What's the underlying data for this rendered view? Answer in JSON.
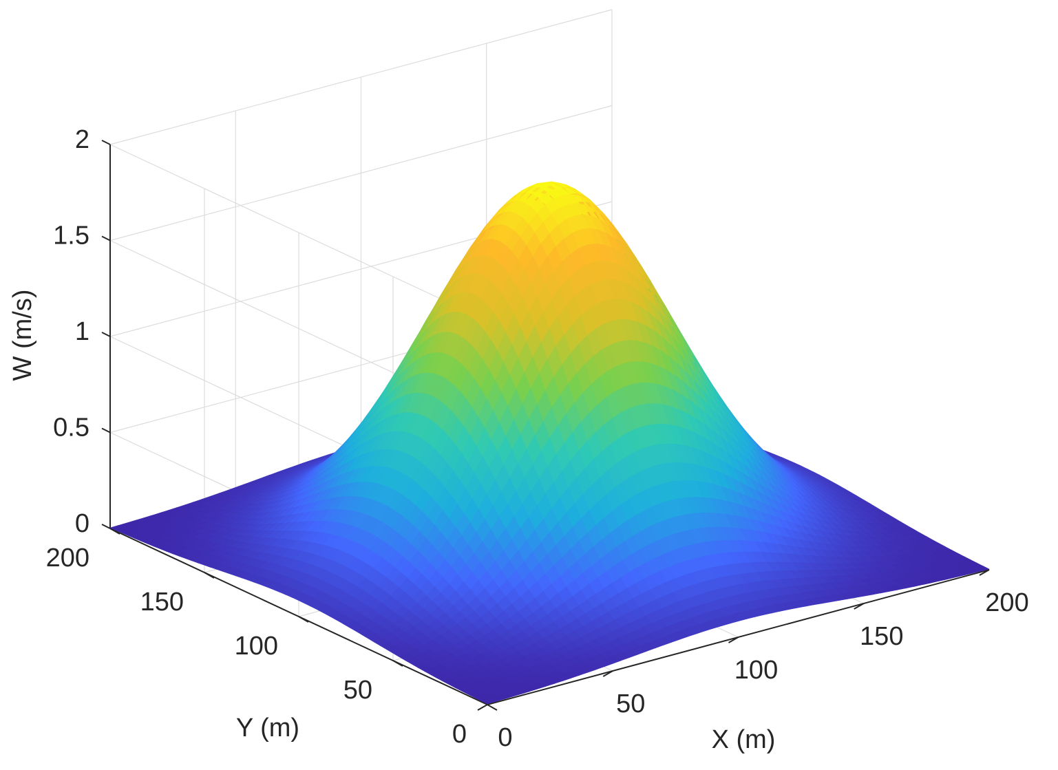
{
  "chart_data": {
    "type": "surface",
    "title": "",
    "xlabel": "X (m)",
    "ylabel": "Y (m)",
    "zlabel": "W (m/s)",
    "xlim": [
      0,
      200
    ],
    "ylim": [
      0,
      200
    ],
    "zlim": [
      0,
      2
    ],
    "xticks": [
      0,
      50,
      100,
      150,
      200
    ],
    "yticks": [
      0,
      50,
      100,
      150,
      200
    ],
    "zticks": [
      0,
      0.5,
      1,
      1.5,
      2
    ],
    "xtick_labels": [
      "0",
      "50",
      "100",
      "150",
      "200"
    ],
    "ytick_labels": [
      "0",
      "50",
      "100",
      "150",
      "200"
    ],
    "ztick_labels": [
      "0",
      "0.5",
      "1",
      "1.5",
      "2"
    ],
    "grid": true,
    "colormap": "parula",
    "surface_function": {
      "form": "W = A * exp(-((x - x0)^2 + (y - y0)^2) / (2 * sigma^2))",
      "A": 1.9,
      "x0": 100,
      "y0": 100,
      "sigma": 40
    },
    "colors": {
      "axis": "#262626",
      "grid": "#dcdcdc",
      "colormap_stops": [
        "#3e26a8",
        "#4367fd",
        "#1eafde",
        "#30cab3",
        "#7bd04d",
        "#d9c129",
        "#fdb929",
        "#f9fb15"
      ]
    }
  }
}
